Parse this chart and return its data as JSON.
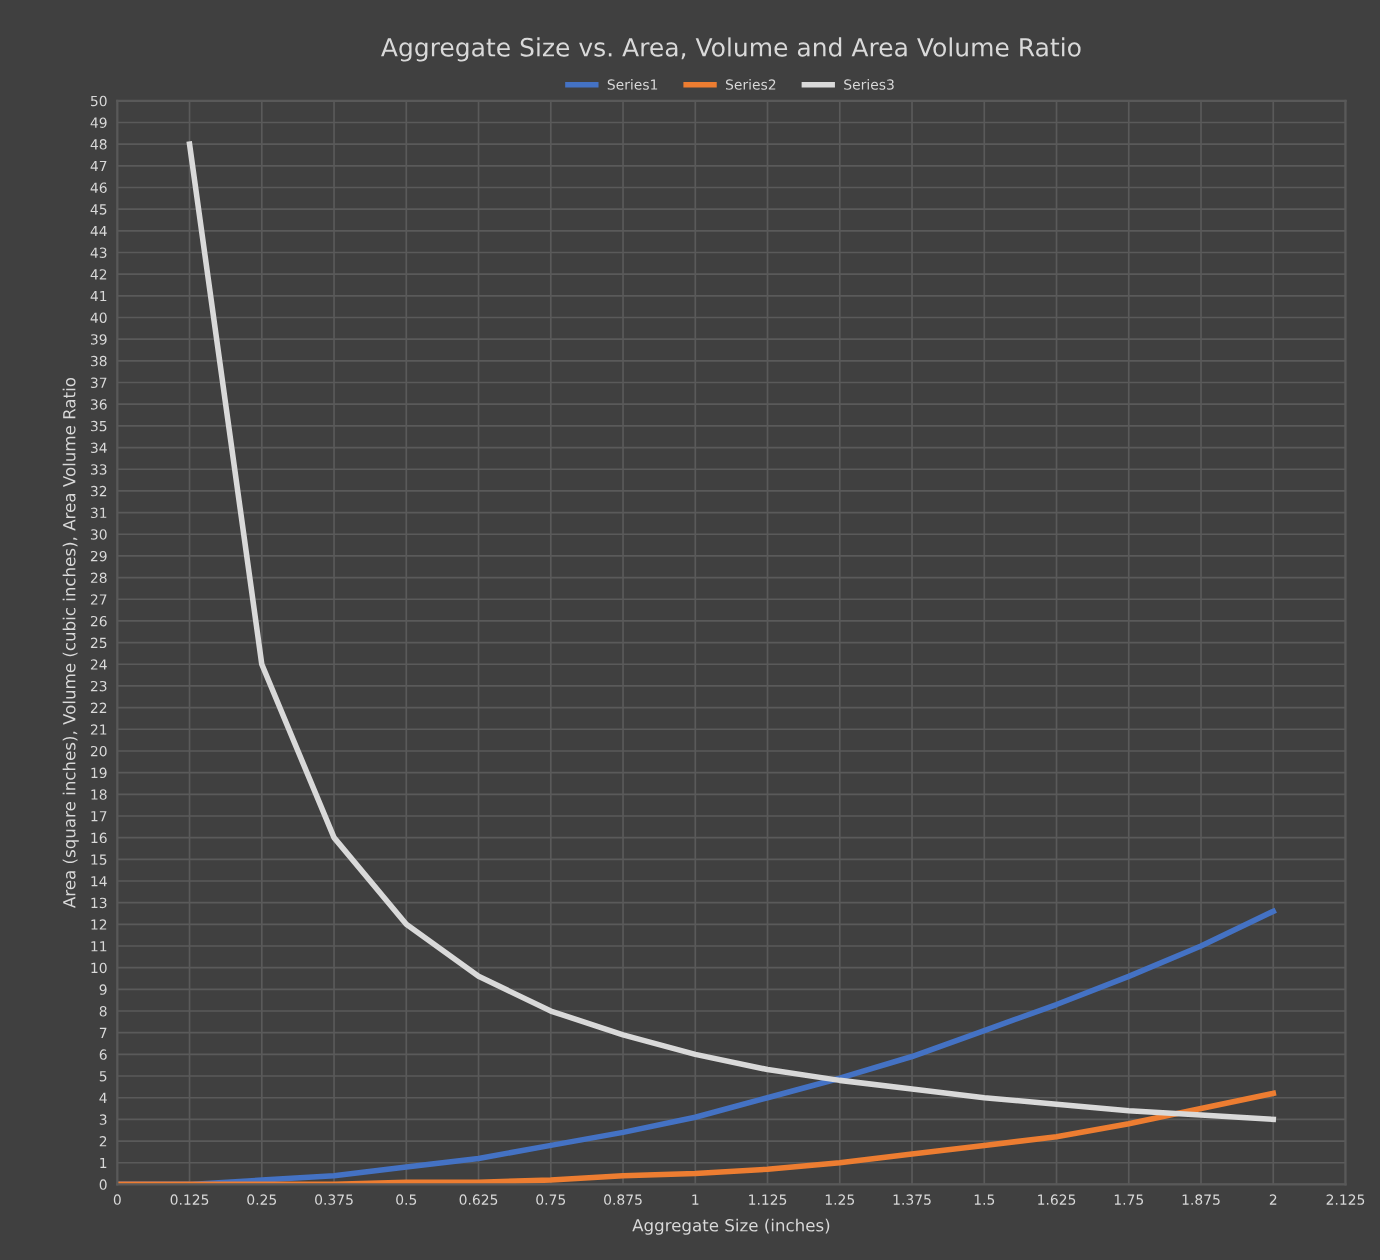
{
  "chart_data": {
    "type": "line",
    "title": "Aggregate Size vs. Area, Volume and Area Volume Ratio",
    "xlabel": "Aggregate Size (inches)",
    "ylabel": "Area (square inches), Volume (cubic inches), Area Volume Ratio",
    "series": [
      {
        "name": "Series1",
        "color": "#4472c4",
        "x": [
          0,
          0.125,
          0.25,
          0.375,
          0.5,
          0.625,
          0.75,
          0.875,
          1,
          1.125,
          1.25,
          1.375,
          1.5,
          1.625,
          1.75,
          1.875,
          2
        ],
        "values": [
          0,
          0,
          0.2,
          0.4,
          0.8,
          1.2,
          1.8,
          2.4,
          3.1,
          4,
          4.9,
          5.9,
          7.1,
          8.3,
          9.6,
          11,
          12.6
        ]
      },
      {
        "name": "Series2",
        "color": "#ed7d31",
        "x": [
          0,
          0.125,
          0.25,
          0.375,
          0.5,
          0.625,
          0.75,
          0.875,
          1,
          1.125,
          1.25,
          1.375,
          1.5,
          1.625,
          1.75,
          1.875,
          2
        ],
        "values": [
          0,
          0,
          0,
          0,
          0.1,
          0.1,
          0.2,
          0.4,
          0.5,
          0.7,
          1,
          1.4,
          1.8,
          2.2,
          2.8,
          3.5,
          4.2
        ]
      },
      {
        "name": "Series3",
        "color": "#d9d9d9",
        "x": [
          0.125,
          0.25,
          0.375,
          0.5,
          0.625,
          0.75,
          0.875,
          1,
          1.125,
          1.25,
          1.375,
          1.5,
          1.625,
          1.75,
          1.875,
          2
        ],
        "values": [
          48,
          24,
          16,
          12,
          9.6,
          8,
          6.9,
          6,
          5.3,
          4.8,
          4.4,
          4,
          3.7,
          3.4,
          3.2,
          3
        ]
      }
    ],
    "xlim": [
      0,
      2.125
    ],
    "xticks": [
      0,
      0.125,
      0.25,
      0.375,
      0.5,
      0.625,
      0.75,
      0.875,
      1,
      1.125,
      1.25,
      1.375,
      1.5,
      1.625,
      1.75,
      1.875,
      2,
      2.125
    ],
    "ylim": [
      0,
      50
    ],
    "yticks": [
      0,
      1,
      2,
      3,
      4,
      5,
      6,
      7,
      8,
      9,
      10,
      11,
      12,
      13,
      14,
      15,
      16,
      17,
      18,
      19,
      20,
      21,
      22,
      23,
      24,
      25,
      26,
      27,
      28,
      29,
      30,
      31,
      32,
      33,
      34,
      35,
      36,
      37,
      38,
      39,
      40,
      41,
      42,
      43,
      44,
      45,
      46,
      47,
      48,
      49,
      50
    ],
    "grid": true,
    "legend": "top",
    "marker": "none",
    "line_style": "solid"
  }
}
